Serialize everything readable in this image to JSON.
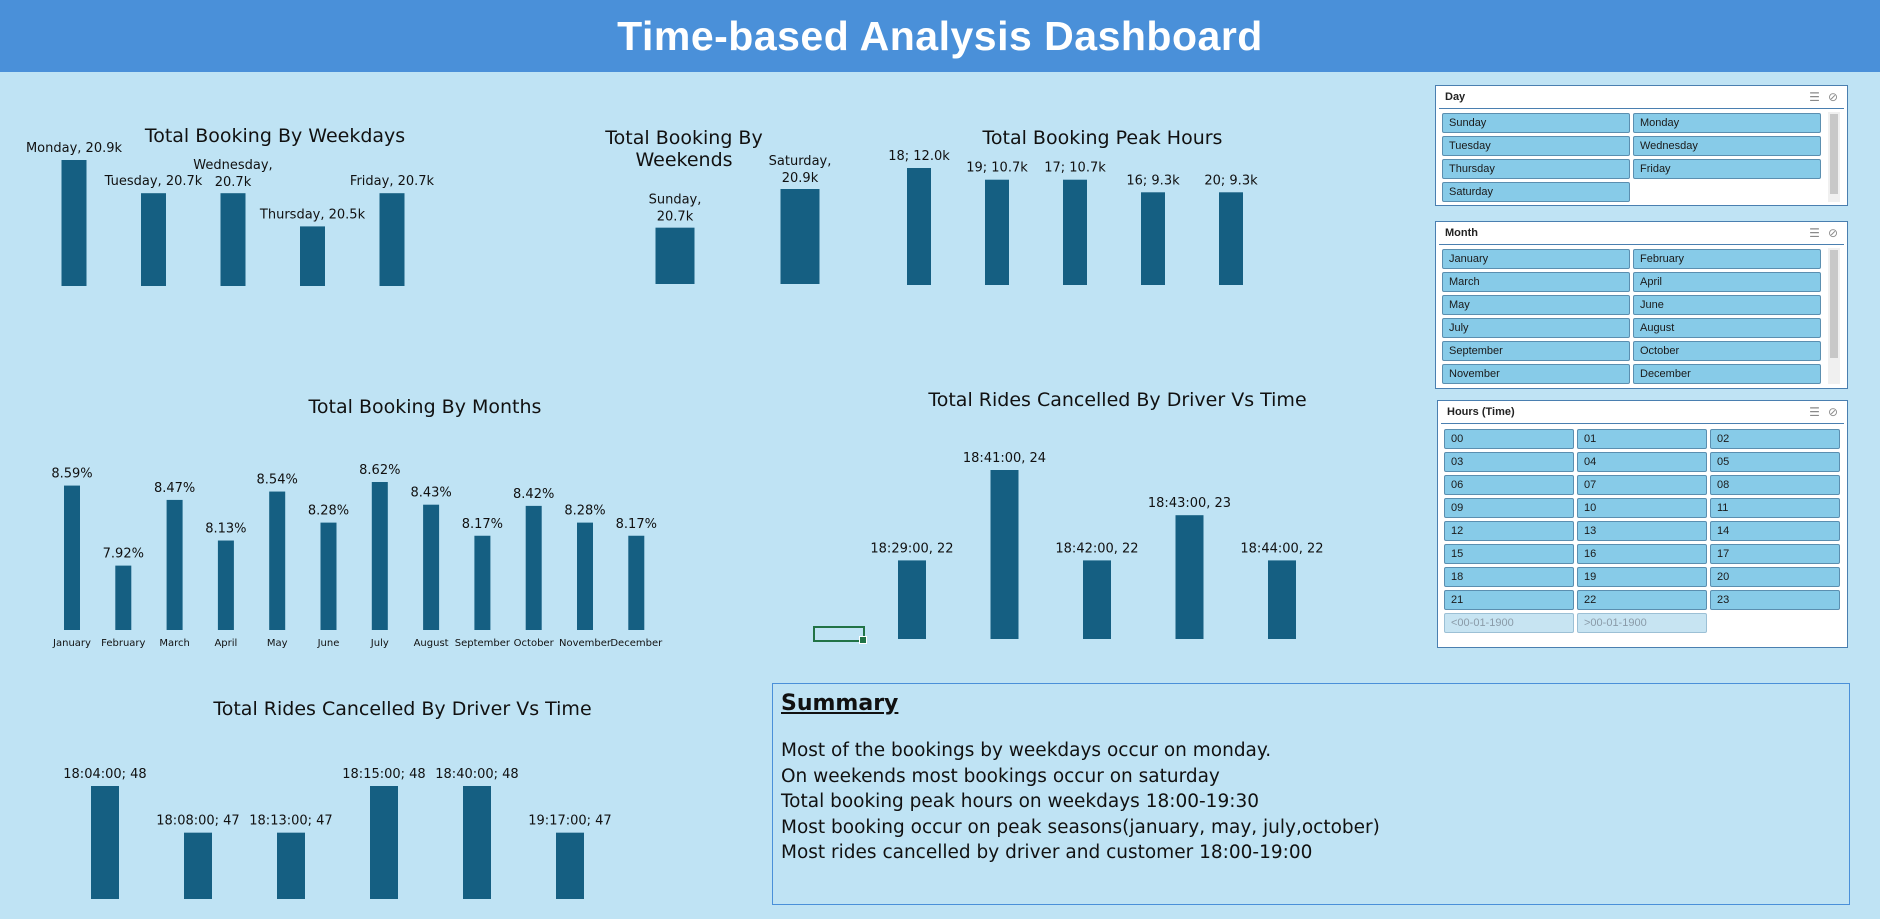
{
  "header": {
    "title": "Time-based Analysis Dashboard"
  },
  "colors": {
    "bar": "#155f82",
    "header": "#4a90d9",
    "background": "#bfe3f4"
  },
  "chart_data": [
    {
      "id": "weekdays",
      "type": "bar",
      "title": "Total Booking By Weekdays",
      "categories": [
        "Monday",
        "Tuesday",
        "Wednesday",
        "Thursday",
        "Friday"
      ],
      "values": [
        20.9,
        20.7,
        20.7,
        20.5,
        20.7
      ],
      "labels": [
        "Monday, 20.9k",
        "Tuesday, 20.7k",
        "Wednesday, 20.7k",
        "Thursday, 20.5k",
        "Friday, 20.7k"
      ]
    },
    {
      "id": "weekends",
      "type": "bar",
      "title": "Total Booking By Weekends",
      "categories": [
        "Sunday",
        "Saturday"
      ],
      "values": [
        20.7,
        20.9
      ],
      "labels": [
        "Sunday, 20.7k",
        "Saturday, 20.9k"
      ]
    },
    {
      "id": "peak",
      "type": "bar",
      "title": "Total Booking Peak Hours",
      "categories": [
        "18",
        "19",
        "17",
        "16",
        "20"
      ],
      "values": [
        12.0,
        10.7,
        10.7,
        9.3,
        9.3
      ],
      "labels": [
        "18; 12.0k",
        "19; 10.7k",
        "17; 10.7k",
        "16; 9.3k",
        "20; 9.3k"
      ]
    },
    {
      "id": "months",
      "type": "bar",
      "title": "Total Booking By Months",
      "categories": [
        "January",
        "February",
        "March",
        "April",
        "May",
        "June",
        "July",
        "August",
        "September",
        "October",
        "November",
        "December"
      ],
      "values": [
        8.59,
        7.92,
        8.47,
        8.13,
        8.54,
        8.28,
        8.62,
        8.43,
        8.17,
        8.42,
        8.28,
        8.17
      ],
      "labels": [
        "8.59%",
        "7.92%",
        "8.47%",
        "8.13%",
        "8.54%",
        "8.28%",
        "8.62%",
        "8.43%",
        "8.17%",
        "8.42%",
        "8.28%",
        "8.17%"
      ]
    },
    {
      "id": "cancel1",
      "type": "bar",
      "title": "Total Rides Cancelled By Driver Vs Time",
      "categories": [
        "18:29:00",
        "18:41:00",
        "18:42:00",
        "18:43:00",
        "18:44:00"
      ],
      "values": [
        22,
        24,
        22,
        23,
        22
      ],
      "labels": [
        "18:29:00, 22",
        "18:41:00, 24",
        "18:42:00, 22",
        "18:43:00, 23",
        "18:44:00, 22"
      ]
    },
    {
      "id": "cancel2",
      "type": "bar",
      "title": "Total Rides Cancelled By Driver Vs Time",
      "categories": [
        "18:04:00",
        "18:08:00",
        "18:13:00",
        "18:15:00",
        "18:40:00",
        "19:17:00"
      ],
      "values": [
        48,
        47,
        47,
        48,
        48,
        47
      ],
      "labels": [
        "18:04:00; 48",
        "18:08:00; 47",
        "18:13:00; 47",
        "18:15:00; 48",
        "18:40:00; 48",
        "19:17:00; 47"
      ]
    }
  ],
  "slicers": {
    "day": {
      "title": "Day",
      "items": [
        "Sunday",
        "Monday",
        "Tuesday",
        "Wednesday",
        "Thursday",
        "Friday",
        "Saturday"
      ],
      "icons": [
        "multi-select-icon",
        "clear-filter-icon"
      ]
    },
    "month": {
      "title": "Month",
      "items": [
        "January",
        "February",
        "March",
        "April",
        "May",
        "June",
        "July",
        "August",
        "September",
        "October",
        "November",
        "December"
      ],
      "icons": [
        "multi-select-icon",
        "clear-filter-icon"
      ]
    },
    "hours": {
      "title": "Hours (Time)",
      "items": [
        "00",
        "01",
        "02",
        "03",
        "04",
        "05",
        "06",
        "07",
        "08",
        "09",
        "10",
        "11",
        "12",
        "13",
        "14",
        "15",
        "16",
        "17",
        "18",
        "19",
        "20",
        "21",
        "22",
        "23"
      ],
      "dim_items": [
        "<00-01-1900",
        ">00-01-1900"
      ],
      "icons": [
        "multi-select-icon",
        "clear-filter-icon"
      ]
    }
  },
  "summary": {
    "heading": "Summary",
    "lines": [
      "Most of the bookings by weekdays occur on monday.",
      "On weekends most bookings occur on saturday",
      "Total booking peak hours on weekdays  18:00-19:30",
      "Most booking occur on peak seasons(january, may, july,october)",
      "Most rides cancelled by driver and customer 18:00-19:00"
    ]
  }
}
